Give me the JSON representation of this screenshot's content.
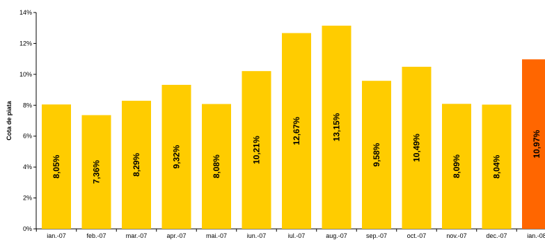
{
  "chart_data": {
    "type": "bar",
    "title": "",
    "xlabel": "",
    "ylabel": "Cota de piata",
    "ylim": [
      0,
      14
    ],
    "ytick_values": [
      0,
      2,
      4,
      6,
      8,
      10,
      12,
      14
    ],
    "ytick_labels": [
      "0%",
      "2%",
      "4%",
      "6%",
      "8%",
      "10%",
      "12%",
      "14%"
    ],
    "grid": false,
    "legend": "none",
    "categories": [
      "ian.-07",
      "feb.-07",
      "mar.-07",
      "apr.-07",
      "mai.-07",
      "iun.-07",
      "iul.-07",
      "aug.-07",
      "sep.-07",
      "oct.-07",
      "nov.-07",
      "dec.-07",
      "ian.-08"
    ],
    "values": [
      8.05,
      7.36,
      8.29,
      9.32,
      8.08,
      10.21,
      12.67,
      13.15,
      9.58,
      10.49,
      8.09,
      8.04,
      10.97
    ],
    "data_labels": [
      "8,05%",
      "7,36%",
      "8,29%",
      "9,32%",
      "8,08%",
      "10,21%",
      "12,67%",
      "13,15%",
      "9,58%",
      "10,49%",
      "8,09%",
      "8,04%",
      "10,97%"
    ],
    "colors": {
      "default_bar": "#FFCC00",
      "highlight_bar": "#FF6600",
      "axis": "#000000"
    },
    "highlight_index": 12
  }
}
